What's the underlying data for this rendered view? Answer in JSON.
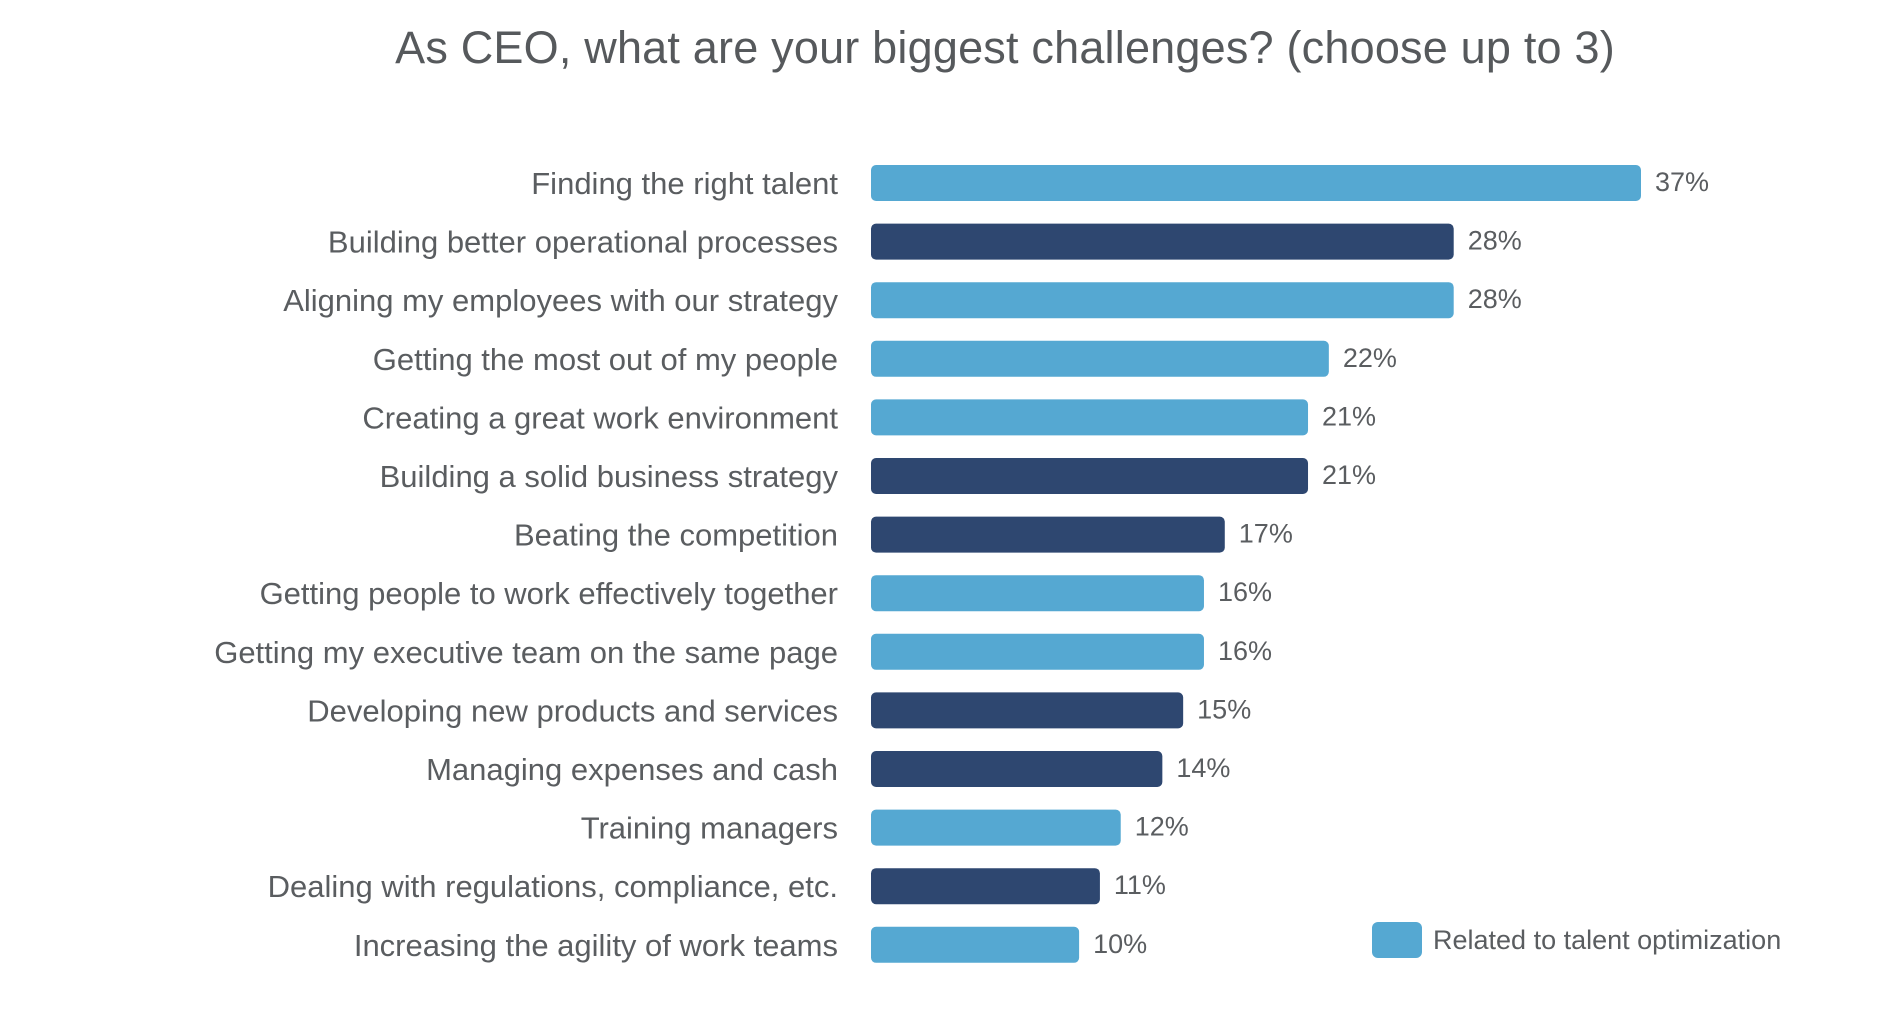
{
  "colors": {
    "talent": "#55a8d2",
    "other": "#2e4770"
  },
  "legend": {
    "label": "Related to talent optimization",
    "color": "#55a8d2"
  },
  "chart_data": {
    "type": "bar",
    "orientation": "horizontal",
    "title": "As CEO, what are your biggest challenges? (choose up to 3)",
    "xlim": [
      0,
      37
    ],
    "grid": false,
    "legend_position": "bottom-right",
    "categories": [
      "Finding the right talent",
      "Building better operational processes",
      "Aligning my employees with our strategy",
      "Getting the most out of my people",
      "Creating a great work environment",
      "Building a solid business strategy",
      "Beating the competition",
      "Getting people to work effectively together",
      "Getting my executive team on the same page",
      "Developing new products and services",
      "Managing expenses and cash",
      "Training managers",
      "Dealing with regulations, compliance, etc.",
      "Increasing the agility of work teams"
    ],
    "values": [
      37,
      28,
      28,
      22,
      21,
      21,
      17,
      16,
      16,
      15,
      14,
      12,
      11,
      10
    ],
    "value_labels": [
      "37%",
      "28%",
      "28%",
      "22%",
      "21%",
      "21%",
      "17%",
      "16%",
      "16%",
      "15%",
      "14%",
      "12%",
      "11%",
      "10%"
    ],
    "talent_related": [
      true,
      false,
      true,
      true,
      true,
      false,
      false,
      true,
      true,
      false,
      false,
      true,
      false,
      true
    ]
  }
}
